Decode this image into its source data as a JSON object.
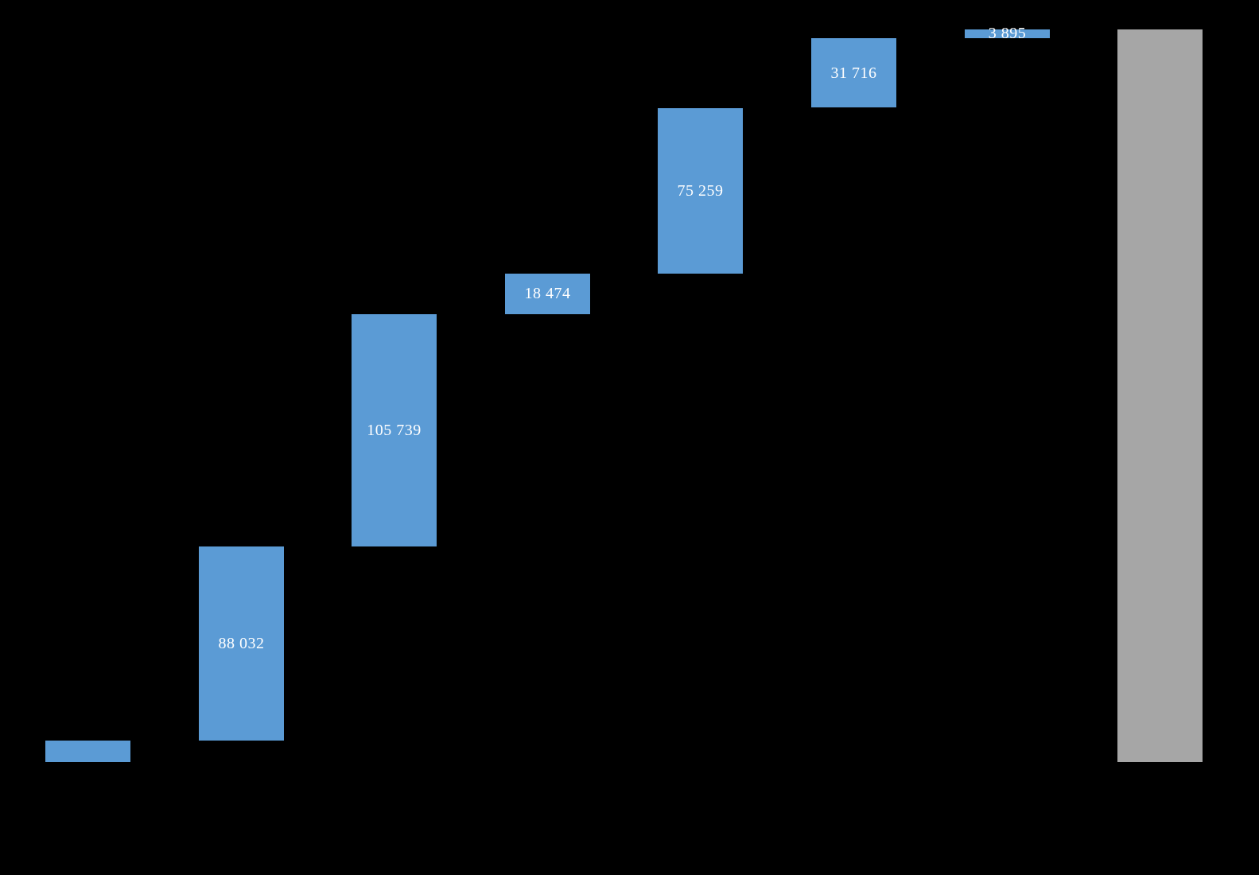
{
  "chart_data": {
    "type": "bar",
    "subtype": "waterfall",
    "title": "",
    "xlabel": "",
    "ylabel": "",
    "background_color": "#000000",
    "increment_color": "#5B9BD5",
    "total_color": "#A6A6A6",
    "label_color": "#FFFFFF",
    "grid": false,
    "legend": false,
    "ylim": [
      0,
      332915
    ],
    "steps": [
      {
        "value": 9800,
        "label": "",
        "kind": "increment"
      },
      {
        "value": 88032,
        "label": "88 032",
        "kind": "increment"
      },
      {
        "value": 105739,
        "label": "105 739",
        "kind": "increment"
      },
      {
        "value": 18474,
        "label": "18 474",
        "kind": "increment"
      },
      {
        "value": 75259,
        "label": "75 259",
        "kind": "increment"
      },
      {
        "value": 31716,
        "label": "31 716",
        "kind": "increment"
      },
      {
        "value": 3895,
        "label": "3 895",
        "kind": "increment"
      },
      {
        "value": 332915,
        "label": "",
        "kind": "total"
      }
    ]
  }
}
